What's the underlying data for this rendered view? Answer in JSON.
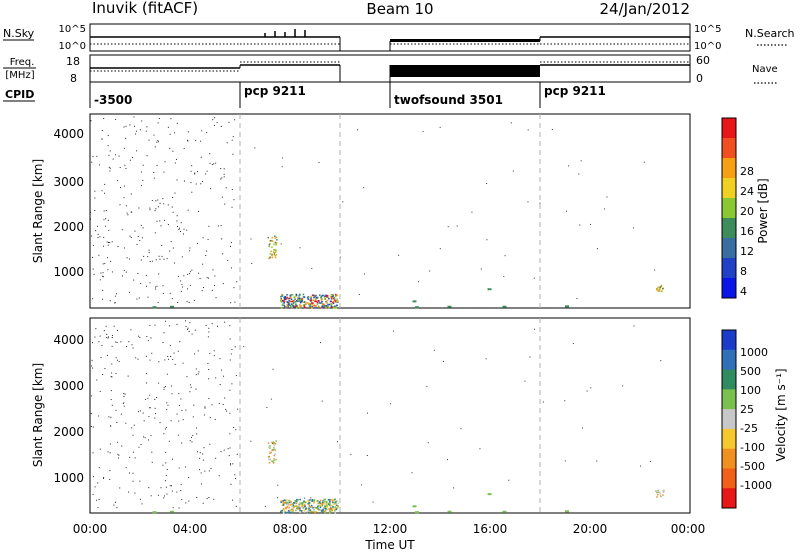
{
  "header": {
    "title_left": "Inuvik (fitACF)",
    "title_center": "Beam 10",
    "title_right": "24/Jan/2012"
  },
  "panel_labels": {
    "nsky": "N.Sky",
    "nsearch": "N.Search",
    "freq": "Freq.",
    "freq_unit": "[MHz]",
    "nave": "Nave",
    "cpid": "CPID",
    "nsky_ticks": [
      "10^5",
      "10^0"
    ],
    "nsearch_ticks": [
      "10^5",
      "10^0"
    ],
    "freq_ticks": [
      "18",
      "8"
    ],
    "nave_ticks": [
      "60",
      "0"
    ]
  },
  "cpid_segments": [
    "-3500",
    "pcp 9211",
    "twofsound 3501",
    "pcp 9211"
  ],
  "chart_data": [
    {
      "type": "heatmap",
      "name": "power",
      "ylabel": "Slant Range [km]",
      "ylim": [
        180,
        4500
      ],
      "yticks": [
        "4000",
        "3000",
        "2000",
        "1000"
      ],
      "colorbar_label": "Power [dB]",
      "colorbar_ticks": [
        "28",
        "24",
        "20",
        "16",
        "12",
        "8",
        "4"
      ],
      "colorbar_colors": [
        "#e8161b",
        "#f05020",
        "#f5a010",
        "#f0d020",
        "#8ac832",
        "#3d8c5c",
        "#3a6ea0",
        "#2040c8",
        "#0a14e6"
      ]
    },
    {
      "type": "heatmap",
      "name": "velocity",
      "ylabel": "Slant Range [km]",
      "ylim": [
        180,
        4500
      ],
      "yticks": [
        "4000",
        "3000",
        "2000",
        "1000"
      ],
      "colorbar_label": "Velocity [m s⁻¹]",
      "colorbar_ticks": [
        "1000",
        "500",
        "100",
        "25",
        "-25",
        "-100",
        "-500",
        "-1000"
      ],
      "colorbar_colors": [
        "#1a3cc8",
        "#3070b8",
        "#2e8c60",
        "#7ac050",
        "#c8c8c8",
        "#f5c830",
        "#f09020",
        "#f06018",
        "#e81818"
      ]
    }
  ],
  "xaxis": {
    "label": "Time UT",
    "ticks": [
      "00:00",
      "04:00",
      "08:00",
      "12:00",
      "16:00",
      "20:00",
      "00:00"
    ]
  },
  "colors": {
    "grid": "#b0b0b0",
    "cpid_bar": "#000000"
  }
}
